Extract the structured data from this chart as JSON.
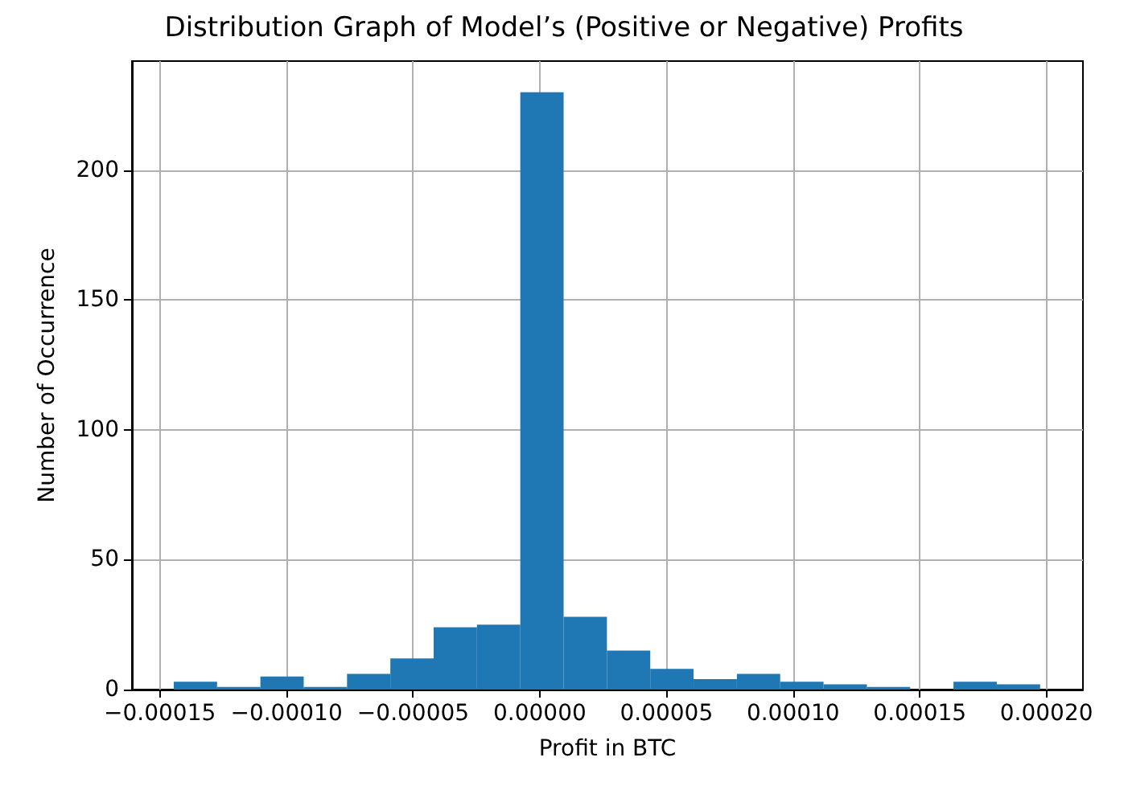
{
  "chart_data": {
    "type": "histogram",
    "title": "Distribution Graph of Model’s (Positive or Negative) Profits",
    "xlabel": "Profit in BTC",
    "ylabel": "Number of Occurrence",
    "bins": [
      -0.0001445,
      -0.0001274,
      -0.0001103,
      -9.32e-05,
      -7.61e-05,
      -5.9e-05,
      -4.19e-05,
      -2.48e-05,
      -7.7e-06,
      9.4e-06,
      2.65e-05,
      4.36e-05,
      6.07e-05,
      7.78e-05,
      9.49e-05,
      0.000112,
      0.0001291,
      0.0001462,
      0.0001633,
      0.0001804,
      0.0001975
    ],
    "values": [
      3,
      1,
      5,
      1,
      6,
      12,
      24,
      25,
      230,
      28,
      15,
      8,
      4,
      6,
      3,
      2,
      1,
      0,
      3,
      2
    ],
    "color": "#1f77b4",
    "xlim": [
      -0.000161,
      0.0002144
    ],
    "ylim": [
      0,
      242
    ],
    "xticks": [
      {
        "value": -0.00015,
        "label": "−0.00015"
      },
      {
        "value": -0.0001,
        "label": "−0.00010"
      },
      {
        "value": -5e-05,
        "label": "−0.00005"
      },
      {
        "value": 0,
        "label": "0.00000"
      },
      {
        "value": 5e-05,
        "label": "0.00005"
      },
      {
        "value": 0.0001,
        "label": "0.00010"
      },
      {
        "value": 0.00015,
        "label": "0.00015"
      },
      {
        "value": 0.0002,
        "label": "0.00020"
      }
    ],
    "yticks": [
      0,
      50,
      100,
      150,
      200
    ],
    "grid": true
  }
}
